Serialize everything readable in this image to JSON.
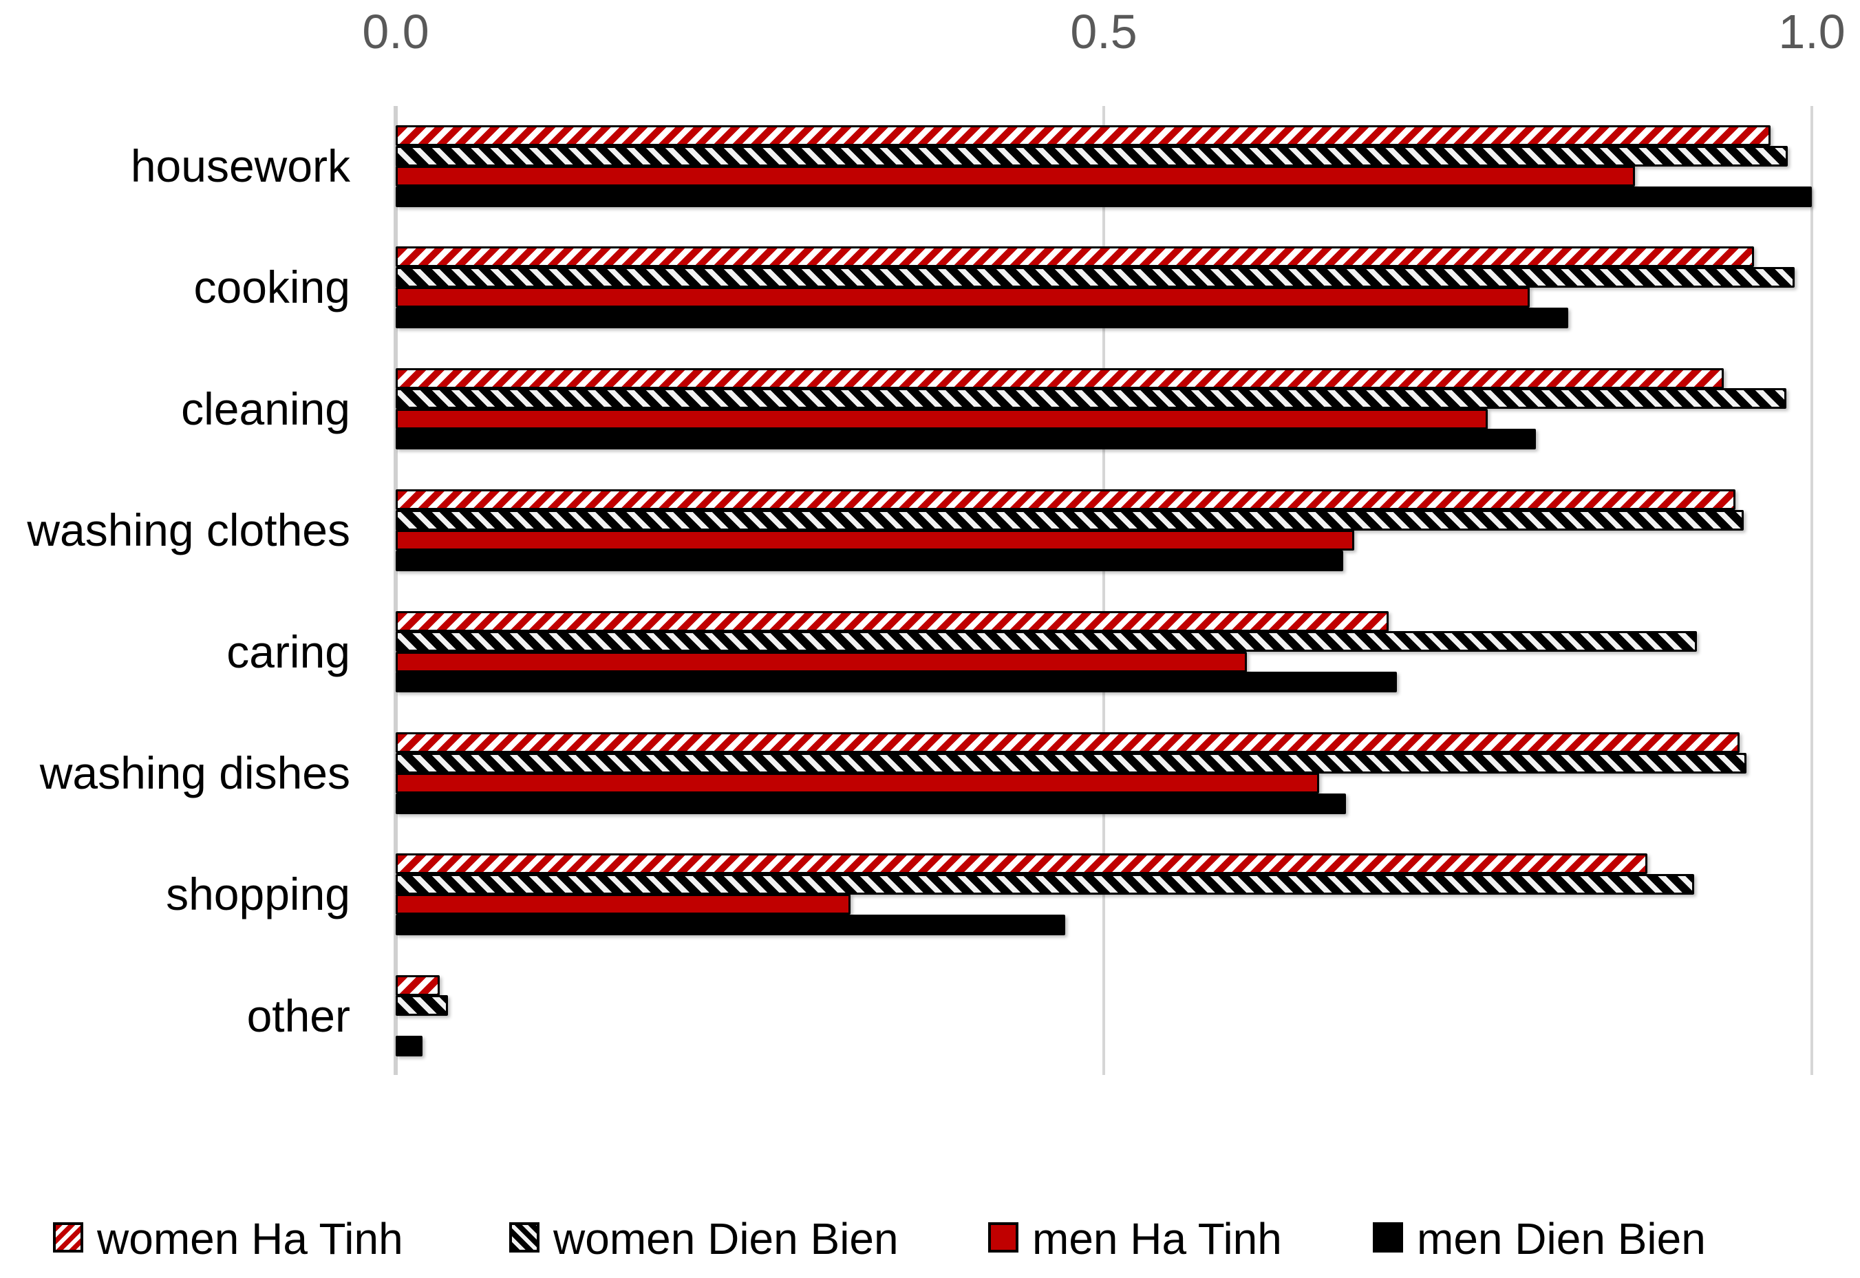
{
  "chart_data": {
    "type": "bar",
    "orientation": "horizontal",
    "title": "",
    "xlabel": "",
    "ylabel": "",
    "xlim": [
      0.0,
      1.0
    ],
    "grid": true,
    "legend_position": "bottom",
    "x_ticks": [
      {
        "label": "0.0",
        "value": 0.0
      },
      {
        "label": "0.5",
        "value": 0.5
      },
      {
        "label": "1.0",
        "value": 1.0
      }
    ],
    "categories": [
      "housework",
      "cooking",
      "cleaning",
      "washing clothes",
      "caring",
      "washing dishes",
      "shopping",
      "other"
    ],
    "series": [
      {
        "name": "women Ha Tinh",
        "pattern": "red-diagonal-hatch",
        "color": "#c00000",
        "values": [
          0.971,
          0.959,
          0.938,
          0.946,
          0.701,
          0.949,
          0.884,
          0.031
        ]
      },
      {
        "name": "women Dien Bien",
        "pattern": "black-diagonal-hatch",
        "color": "#000000",
        "values": [
          0.983,
          0.988,
          0.982,
          0.952,
          0.919,
          0.954,
          0.917,
          0.037
        ]
      },
      {
        "name": "men Ha Tinh",
        "pattern": "solid",
        "color": "#c00000",
        "values": [
          0.875,
          0.801,
          0.771,
          0.677,
          0.601,
          0.652,
          0.321,
          0.0
        ]
      },
      {
        "name": "men Dien Bien",
        "pattern": "solid",
        "color": "#000000",
        "values": [
          1.0,
          0.828,
          0.805,
          0.669,
          0.707,
          0.671,
          0.473,
          0.019
        ]
      }
    ]
  },
  "colors": {
    "background": "#ffffff",
    "gridline": "#d6d6d6",
    "tick_label": "#595959",
    "category_label": "#000000",
    "accent_red": "#c00000",
    "accent_black": "#000000"
  }
}
